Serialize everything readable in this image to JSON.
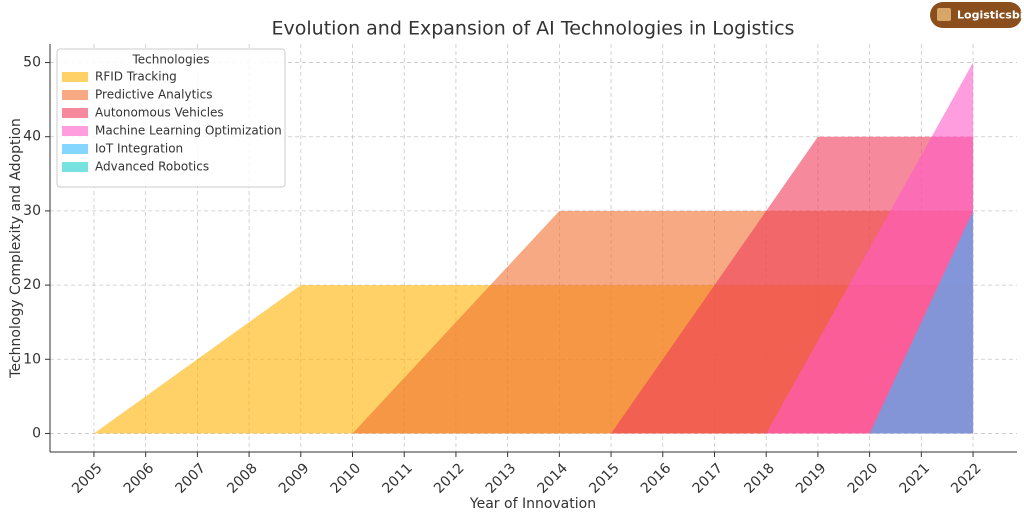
{
  "chart_data": {
    "type": "area",
    "title": "Evolution and Expansion of AI Technologies in Logistics",
    "xlabel": "Year of Innovation",
    "ylabel": "Technology Complexity and Adoption",
    "watermark": "Logisticsbid",
    "legend_title": "Technologies",
    "legend_loc": "upper left",
    "grid": true,
    "x": [
      2005,
      2006,
      2007,
      2008,
      2009,
      2010,
      2011,
      2012,
      2013,
      2014,
      2015,
      2016,
      2017,
      2018,
      2019,
      2020,
      2021,
      2022
    ],
    "xlim": [
      2004.15,
      2022.85
    ],
    "xticks": [
      2005,
      2006,
      2007,
      2008,
      2009,
      2010,
      2011,
      2012,
      2013,
      2014,
      2015,
      2016,
      2017,
      2018,
      2019,
      2020,
      2021,
      2022
    ],
    "ylim": [
      -2.5,
      52.5
    ],
    "yticks": [
      0,
      10,
      20,
      30,
      40,
      50
    ],
    "series": [
      {
        "name": "RFID Tracking",
        "color": "#FFB300",
        "values": [
          0,
          5,
          10,
          15,
          20,
          20,
          20,
          20,
          20,
          20,
          20,
          20,
          20,
          20,
          20,
          20,
          20,
          20
        ]
      },
      {
        "name": "Predictive Analytics",
        "color": "#F07030",
        "values": [
          0,
          0,
          0,
          0,
          0,
          0,
          7.5,
          15,
          22.5,
          30,
          30,
          30,
          30,
          30,
          30,
          30,
          30,
          30
        ]
      },
      {
        "name": "Autonomous Vehicles",
        "color": "#F03C5A",
        "values": [
          0,
          0,
          0,
          0,
          0,
          0,
          0,
          0,
          0,
          0,
          0,
          10,
          20,
          30,
          40,
          40,
          40,
          40
        ]
      },
      {
        "name": "Machine Learning Optimization",
        "color": "#FF5CC8",
        "values": [
          0,
          0,
          0,
          0,
          0,
          0,
          0,
          0,
          0,
          0,
          0,
          0,
          0,
          0,
          12.5,
          25,
          37.5,
          50
        ]
      },
      {
        "name": "IoT Integration",
        "color": "#33BBFF",
        "values": [
          0,
          0,
          0,
          0,
          0,
          0,
          0,
          0,
          0,
          0,
          0,
          0,
          0,
          0,
          0,
          0,
          15,
          30
        ]
      },
      {
        "name": "Advanced Robotics",
        "color": "#1CCFC9",
        "values": [
          0,
          0,
          0,
          0,
          0,
          0,
          0,
          0,
          0,
          0,
          0,
          0,
          0,
          0,
          0,
          0,
          0,
          0
        ]
      }
    ]
  }
}
